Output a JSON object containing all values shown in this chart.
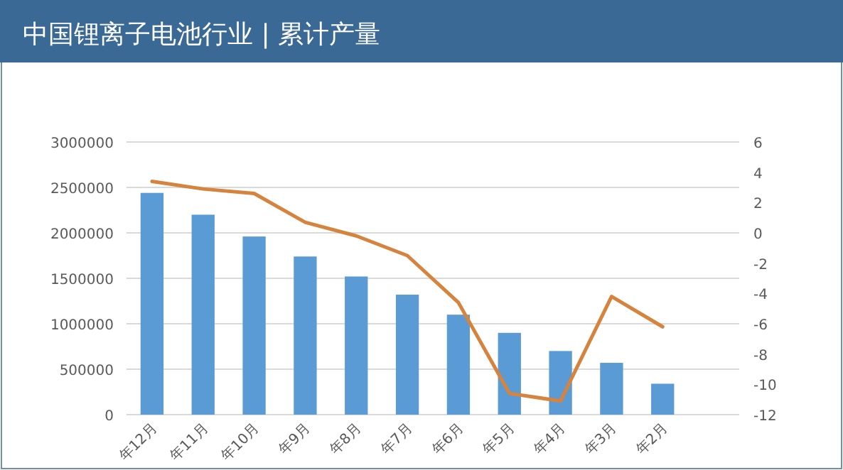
{
  "chart_data": {
    "type": "bar",
    "title": "中国锂离子电池行业 | 累计产量",
    "categories": [
      "年12月",
      "年11月",
      "年10月",
      "年9月",
      "年8月",
      "年7月",
      "年6月",
      "年5月",
      "年4月",
      "年3月",
      "年2月",
      null
    ],
    "series": [
      {
        "color": "#5b9bd5",
        "values": [
          2440000,
          2200000,
          1960000,
          1740000,
          1520000,
          1320000,
          1100000,
          900000,
          700000,
          570000,
          340000,
          null
        ]
      },
      {
        "type": "line",
        "axis": "y2",
        "color": "#d6833e",
        "values": [
          3.4,
          2.9,
          2.6,
          0.7,
          -0.2,
          -1.5,
          -4.6,
          -10.6,
          -11.1,
          -4.2,
          -6.2,
          null
        ]
      }
    ],
    "ylim": [
      0,
      3000000
    ],
    "yticks": [
      0,
      500000,
      1000000,
      1500000,
      2000000,
      2500000,
      3000000
    ],
    "y2lim": [
      -12,
      6
    ],
    "y2ticks": [
      -12,
      -10,
      -8,
      -6,
      -4,
      -2,
      0,
      2,
      4,
      6
    ],
    "grid": "y",
    "marker": "none",
    "line_style": "solid"
  }
}
